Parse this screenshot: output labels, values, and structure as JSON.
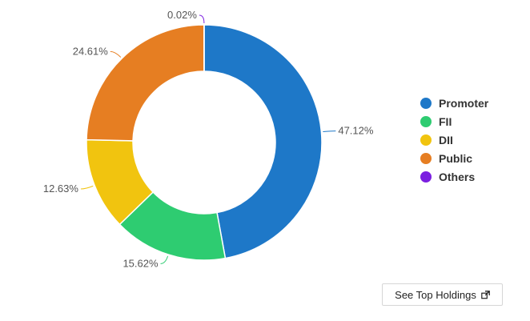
{
  "chart_data": {
    "type": "pie",
    "donut": true,
    "slices": [
      {
        "name": "Promoter",
        "value": 47.12,
        "label": "47.12%",
        "color": "#1e78c8"
      },
      {
        "name": "FII",
        "value": 15.62,
        "label": "15.62%",
        "color": "#2ecc71"
      },
      {
        "name": "DII",
        "value": 12.63,
        "label": "12.63%",
        "color": "#f1c40f"
      },
      {
        "name": "Public",
        "value": 24.61,
        "label": "24.61%",
        "color": "#e67e22"
      },
      {
        "name": "Others",
        "value": 0.02,
        "label": "0.02%",
        "color": "#7b1fe0"
      }
    ],
    "legend_position": "right"
  },
  "legend": {
    "items": [
      {
        "label": "Promoter",
        "color": "#1e78c8"
      },
      {
        "label": "FII",
        "color": "#2ecc71"
      },
      {
        "label": "DII",
        "color": "#f1c40f"
      },
      {
        "label": "Public",
        "color": "#e67e22"
      },
      {
        "label": "Others",
        "color": "#7b1fe0"
      }
    ]
  },
  "actions": {
    "see_top_holdings": "See Top Holdings",
    "external_link_icon": "external-link-icon"
  }
}
